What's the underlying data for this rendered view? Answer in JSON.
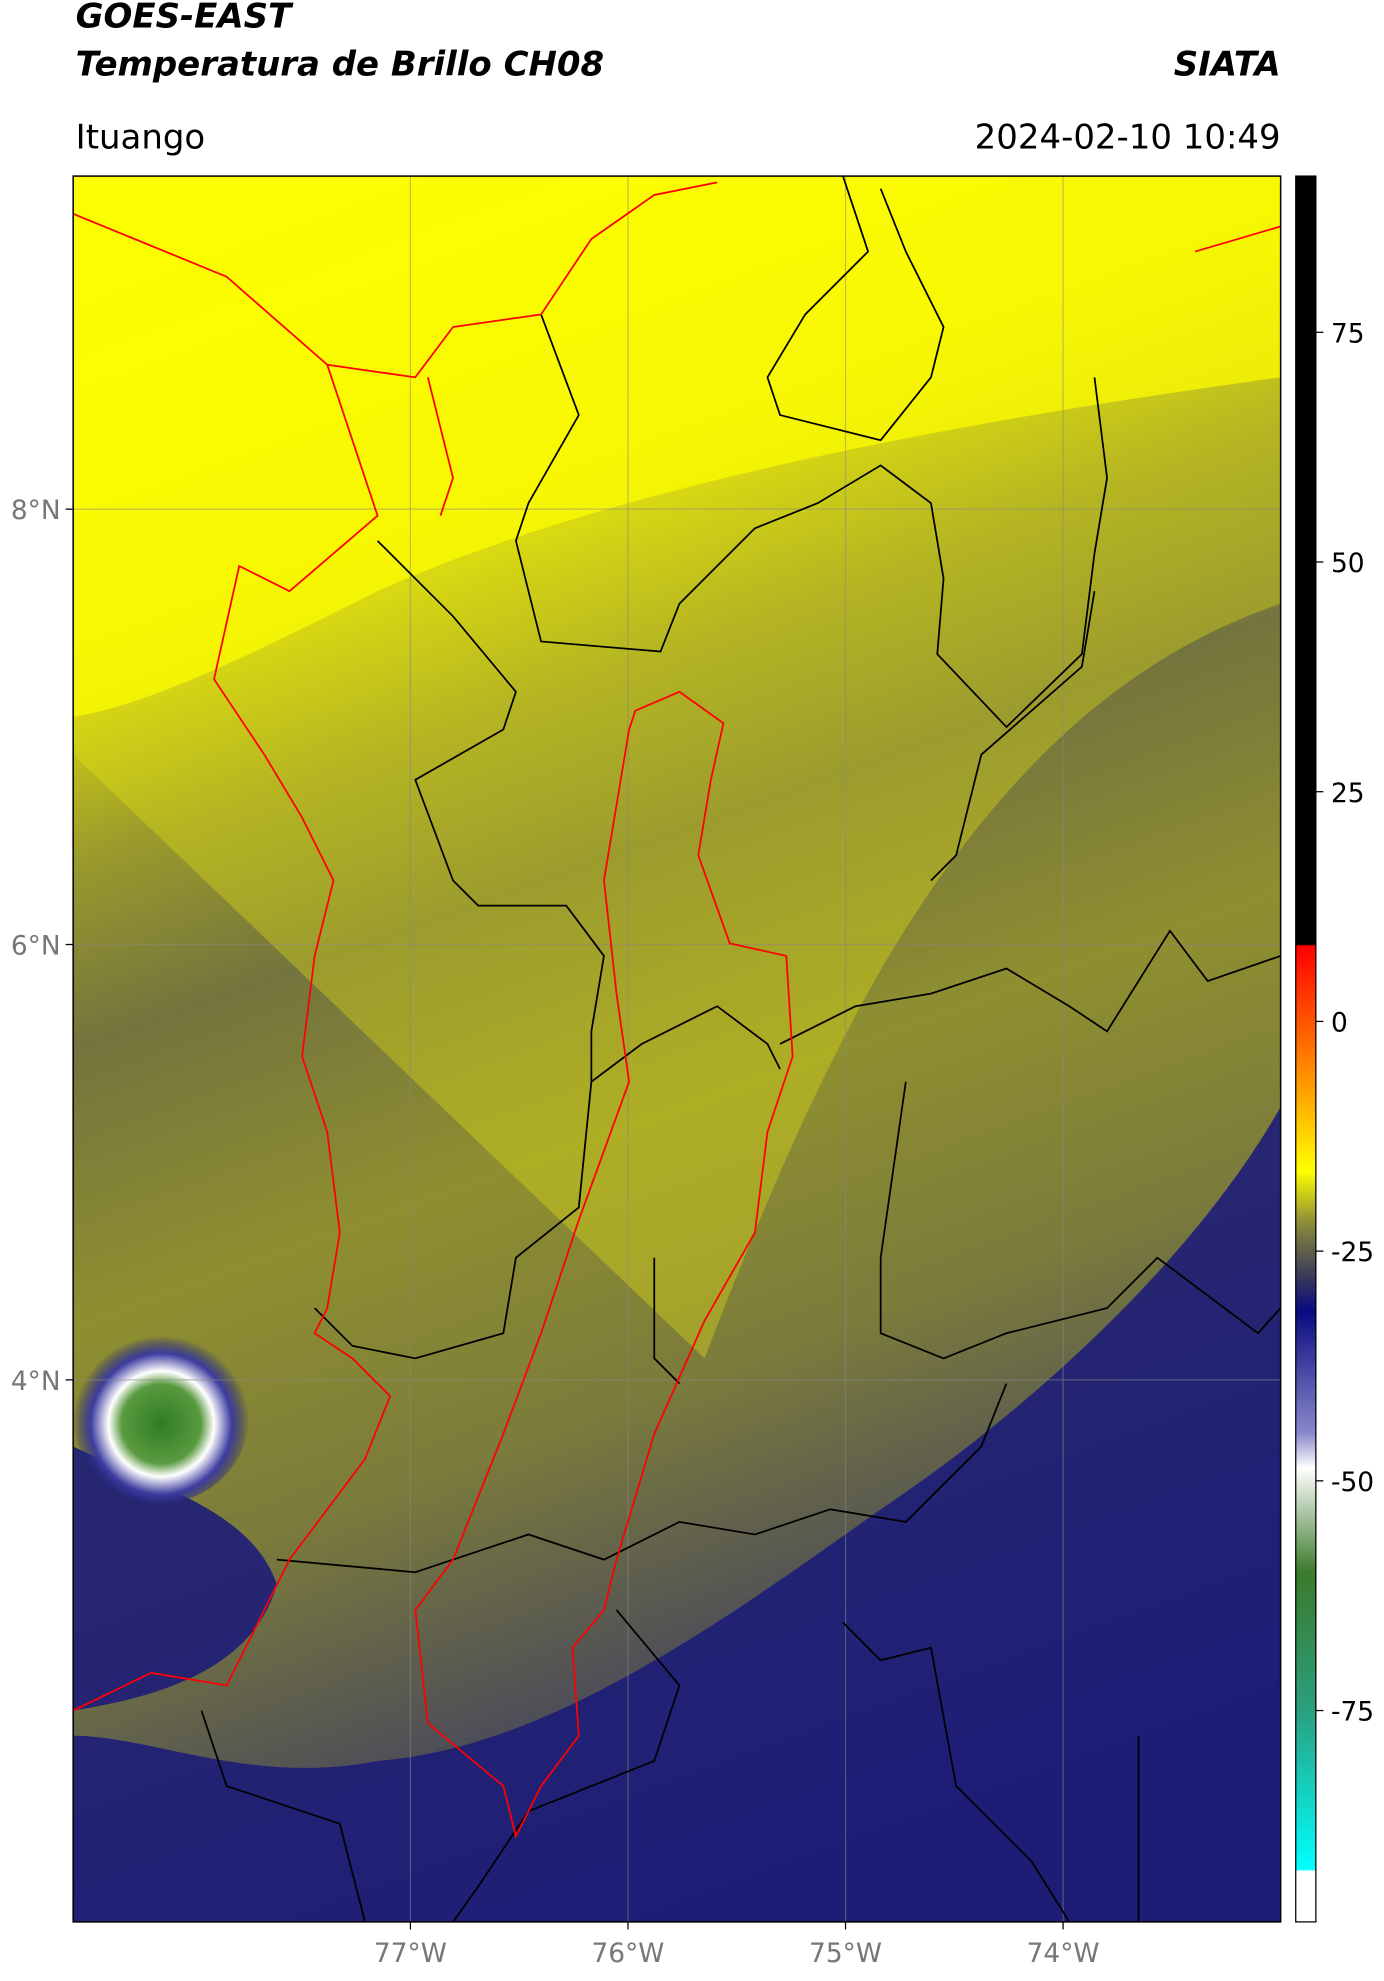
{
  "header": {
    "title": "GOES-EAST",
    "subtitle": "Temperatura de Brillo CH08",
    "brand": "SIATA",
    "location": "Ituango",
    "timestamp": "2024-02-10 10:49"
  },
  "map": {
    "xlim": [
      -78.55,
      -73.0
    ],
    "ylim": [
      1.51,
      9.53
    ],
    "xticks": [
      {
        "value": -77,
        "label": "77°W"
      },
      {
        "value": -76,
        "label": "76°W"
      },
      {
        "value": -75,
        "label": "75°W"
      },
      {
        "value": -74,
        "label": "74°W"
      }
    ],
    "yticks": [
      {
        "value": 8,
        "label": "8°N"
      },
      {
        "value": 6,
        "label": "6°N"
      },
      {
        "value": 4,
        "label": "4°N"
      }
    ]
  },
  "colorbar": {
    "lim": [
      -98,
      92
    ],
    "ticks": [
      75,
      50,
      25,
      0,
      -25,
      -50,
      -75
    ]
  }
}
